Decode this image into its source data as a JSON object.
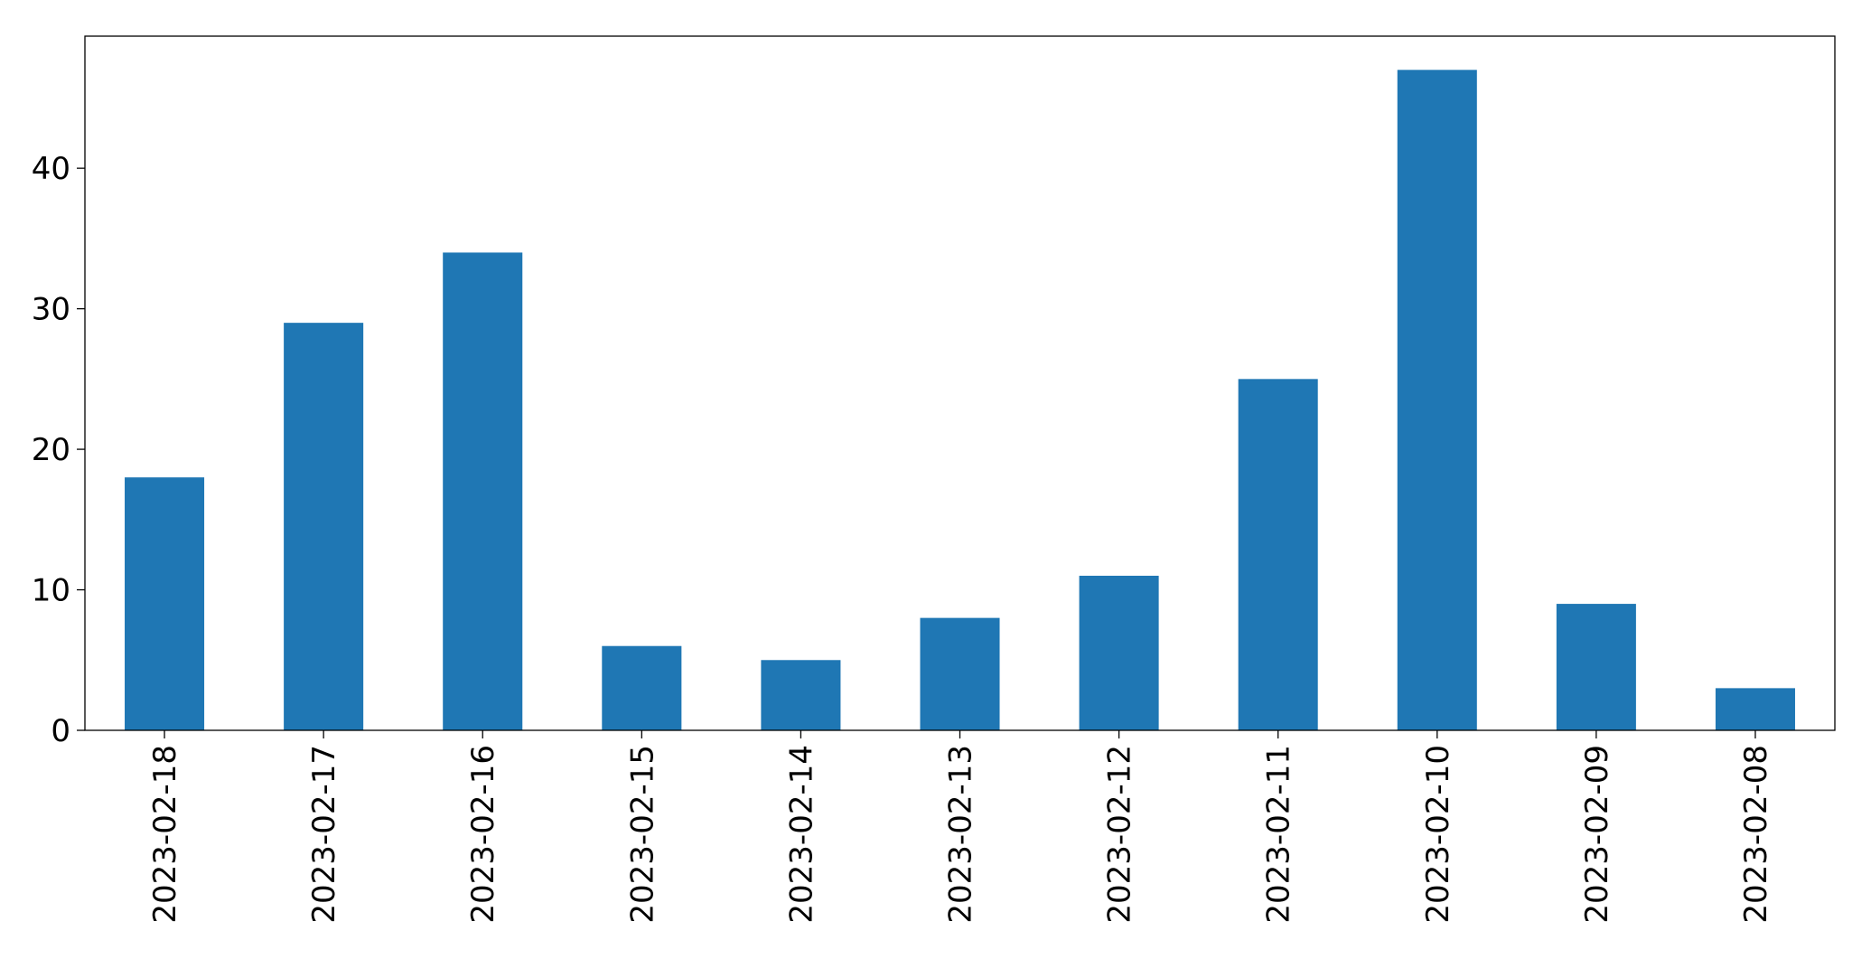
{
  "chart_data": {
    "type": "bar",
    "categories": [
      "2023-02-18",
      "2023-02-17",
      "2023-02-16",
      "2023-02-15",
      "2023-02-14",
      "2023-02-13",
      "2023-02-12",
      "2023-02-11",
      "2023-02-10",
      "2023-02-09",
      "2023-02-08"
    ],
    "values": [
      18,
      29,
      34,
      6,
      5,
      8,
      11,
      25,
      47,
      9,
      3
    ],
    "color": "#1f77b4",
    "ylim": [
      0,
      49.4
    ],
    "yticks": [
      0,
      10,
      20,
      30,
      40
    ],
    "grid": false
  }
}
